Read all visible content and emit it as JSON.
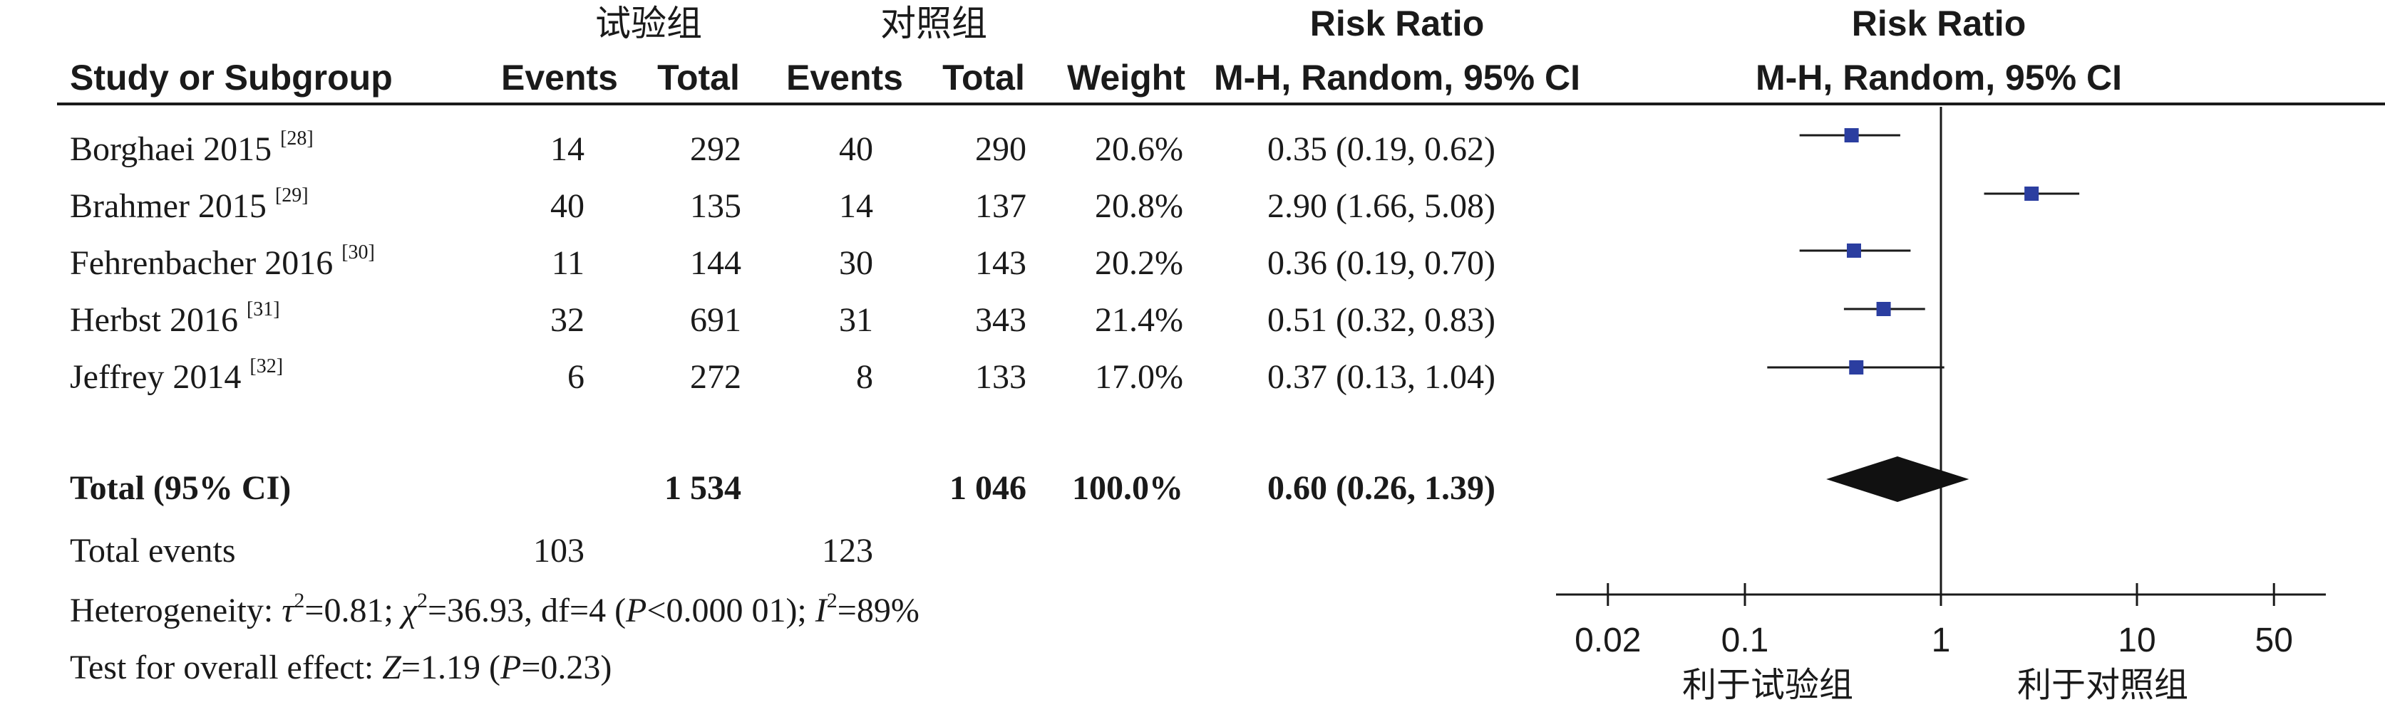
{
  "header": {
    "exp_group": "试验组",
    "ctrl_group": "对照组",
    "risk_ratio": "Risk Ratio",
    "risk_ratio_plot": "Risk Ratio",
    "study_col": "Study or Subgroup",
    "events": "Events",
    "total": "Total",
    "weight": "Weight",
    "method": "M-H, Random, 95% CI",
    "method_plot": "M-H, Random, 95% CI"
  },
  "studies": [
    {
      "name": "Borghaei 2015",
      "ref": "[28]",
      "exp_events": "14",
      "exp_total": "292",
      "ctrl_events": "40",
      "ctrl_total": "290",
      "weight": "20.6%",
      "ci_text": "0.35 (0.19, 0.62)"
    },
    {
      "name": "Brahmer 2015",
      "ref": "[29]",
      "exp_events": "40",
      "exp_total": "135",
      "ctrl_events": "14",
      "ctrl_total": "137",
      "weight": "20.8%",
      "ci_text": "2.90 (1.66, 5.08)"
    },
    {
      "name": "Fehrenbacher 2016",
      "ref": "[30]",
      "exp_events": "11",
      "exp_total": "144",
      "ctrl_events": "30",
      "ctrl_total": "143",
      "weight": "20.2%",
      "ci_text": "0.36 (0.19, 0.70)"
    },
    {
      "name": "Herbst 2016",
      "ref": "[31]",
      "exp_events": "32",
      "exp_total": "691",
      "ctrl_events": "31",
      "ctrl_total": "343",
      "weight": "21.4%",
      "ci_text": "0.51 (0.32, 0.83)"
    },
    {
      "name": "Jeffrey 2014",
      "ref": "[32]",
      "exp_events": "6",
      "exp_total": "272",
      "ctrl_events": "8",
      "ctrl_total": "133",
      "weight": "17.0%",
      "ci_text": "0.37 (0.13, 1.04)"
    }
  ],
  "total": {
    "label": "Total (95% CI)",
    "exp_total": "1 534",
    "ctrl_total": "1 046",
    "weight": "100.0%",
    "ci_text": "0.60 (0.26, 1.39)"
  },
  "total_events": {
    "label": "Total events",
    "exp": "103",
    "ctrl": "123"
  },
  "heterogeneity": {
    "label": "Heterogeneity:",
    "tau": "τ",
    "tau_exp": "2",
    "tau_val": "=0.81;",
    "chi": "χ",
    "chi_exp": "2",
    "chi_val": "=36.93, df=4 (",
    "p": "P",
    "p_val": "<0.000 01);",
    "i": "I",
    "i_exp": "2",
    "i_val": "=89%"
  },
  "overall": {
    "label": "Test for overall effect:",
    "z": "Z",
    "z_val": "=1.19 (",
    "p": "P",
    "p_val": "=0.23)"
  },
  "axis": {
    "ticks": [
      "0.02",
      "0.1",
      "1",
      "10",
      "50"
    ],
    "favours_exp": "利于试验组",
    "favours_ctrl": "利于对照组"
  },
  "chart_data": {
    "type": "forest",
    "x_scale": "log",
    "xlim": [
      0.02,
      50
    ],
    "x_ticks": [
      0.02,
      0.1,
      1,
      10,
      50
    ],
    "reference_line": 1,
    "series": [
      {
        "point": 0.35,
        "lower": 0.19,
        "upper": 0.62,
        "weight": 20.6
      },
      {
        "point": 2.9,
        "lower": 1.66,
        "upper": 5.08,
        "weight": 20.8
      },
      {
        "point": 0.36,
        "lower": 0.19,
        "upper": 0.7,
        "weight": 20.2
      },
      {
        "point": 0.51,
        "lower": 0.32,
        "upper": 0.83,
        "weight": 21.4
      },
      {
        "point": 0.37,
        "lower": 0.13,
        "upper": 1.04,
        "weight": 17.0
      }
    ],
    "pooled": {
      "point": 0.6,
      "lower": 0.26,
      "upper": 1.39
    },
    "colors": {
      "marker": "#2b3ea0",
      "line": "#1a1a1a",
      "diamond": "#111111"
    }
  }
}
